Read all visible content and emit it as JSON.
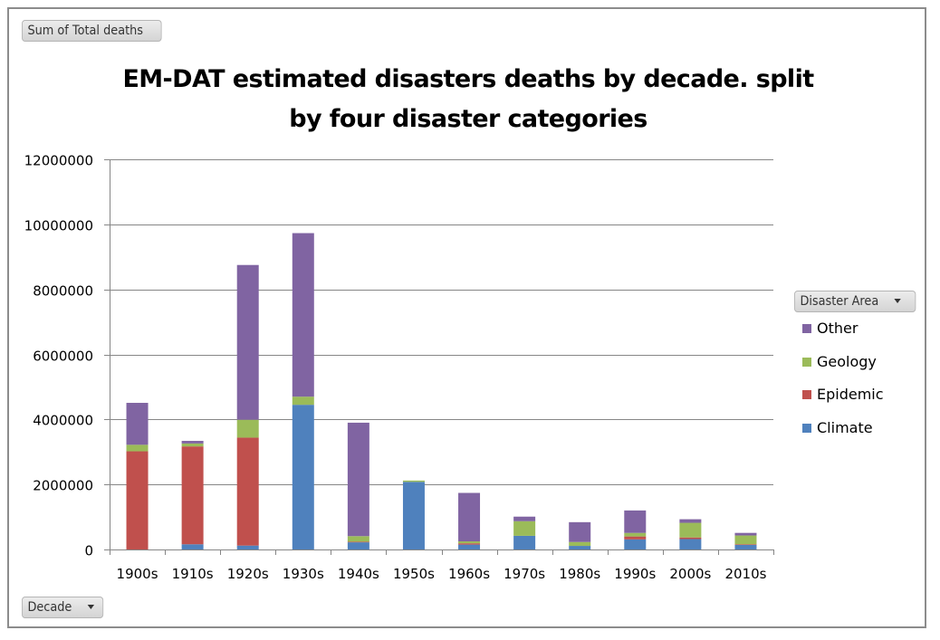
{
  "field_buttons": {
    "values_field": "Sum of Total deaths",
    "axis_field": "Decade",
    "legend_field": "Disaster Area"
  },
  "chart_data": {
    "type": "bar",
    "stacked": true,
    "title": "EM-DAT estimated disasters deaths by decade. split by four disaster categories",
    "title_lines": [
      "EM-DAT estimated disasters deaths by decade. split",
      "by four disaster categories"
    ],
    "xlabel": "",
    "ylabel": "",
    "ylim": [
      0,
      12000000
    ],
    "yticks": [
      0,
      2000000,
      4000000,
      6000000,
      8000000,
      10000000,
      12000000
    ],
    "ytick_labels": [
      "0",
      "2000000",
      "4000000",
      "6000000",
      "8000000",
      "10000000",
      "12000000"
    ],
    "grid": true,
    "legend_position": "right",
    "categories": [
      "1900s",
      "1910s",
      "1920s",
      "1930s",
      "1940s",
      "1950s",
      "1960s",
      "1970s",
      "1980s",
      "1990s",
      "2000s",
      "2010s"
    ],
    "series": [
      {
        "name": "Climate",
        "color": "#4f81bd",
        "values": [
          0,
          160000,
          120000,
          4450000,
          220000,
          2080000,
          150000,
          420000,
          110000,
          310000,
          320000,
          140000
        ]
      },
      {
        "name": "Epidemic",
        "color": "#c0504d",
        "values": [
          3020000,
          3010000,
          3320000,
          0,
          20000,
          0,
          40000,
          0,
          0,
          90000,
          50000,
          20000
        ]
      },
      {
        "name": "Geology",
        "color": "#9bbb59",
        "values": [
          200000,
          90000,
          550000,
          250000,
          170000,
          40000,
          60000,
          450000,
          120000,
          110000,
          450000,
          270000
        ]
      },
      {
        "name": "Other",
        "color": "#8064a2",
        "values": [
          1290000,
          80000,
          4760000,
          5030000,
          3490000,
          0,
          1490000,
          140000,
          610000,
          690000,
          110000,
          80000
        ]
      }
    ],
    "legend_order": [
      "Other",
      "Geology",
      "Epidemic",
      "Climate"
    ]
  }
}
